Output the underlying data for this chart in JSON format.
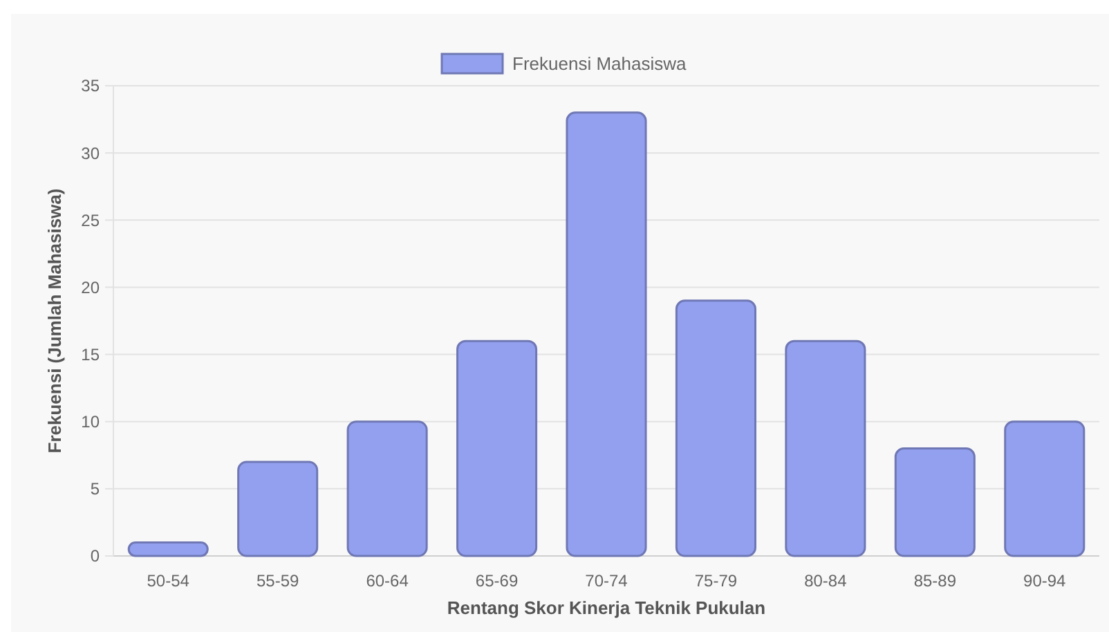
{
  "chart_data": {
    "type": "bar",
    "xlabel": "Rentang Skor Kinerja Teknik Pukulan",
    "ylabel": "Frekuensi (Jumlah Mahasiswa)",
    "categories": [
      "50-54",
      "55-59",
      "60-64",
      "65-69",
      "70-74",
      "75-79",
      "80-84",
      "85-89",
      "90-94"
    ],
    "series": [
      {
        "name": "Frekuensi Mahasiswa",
        "color": "#93a0f0",
        "values": [
          1,
          7,
          10,
          16,
          33,
          19,
          16,
          8,
          10
        ]
      }
    ],
    "ylim": [
      0,
      35
    ],
    "yticks": [
      0,
      5,
      10,
      15,
      20,
      25,
      30,
      35
    ],
    "grid": "y",
    "legend": "top"
  }
}
